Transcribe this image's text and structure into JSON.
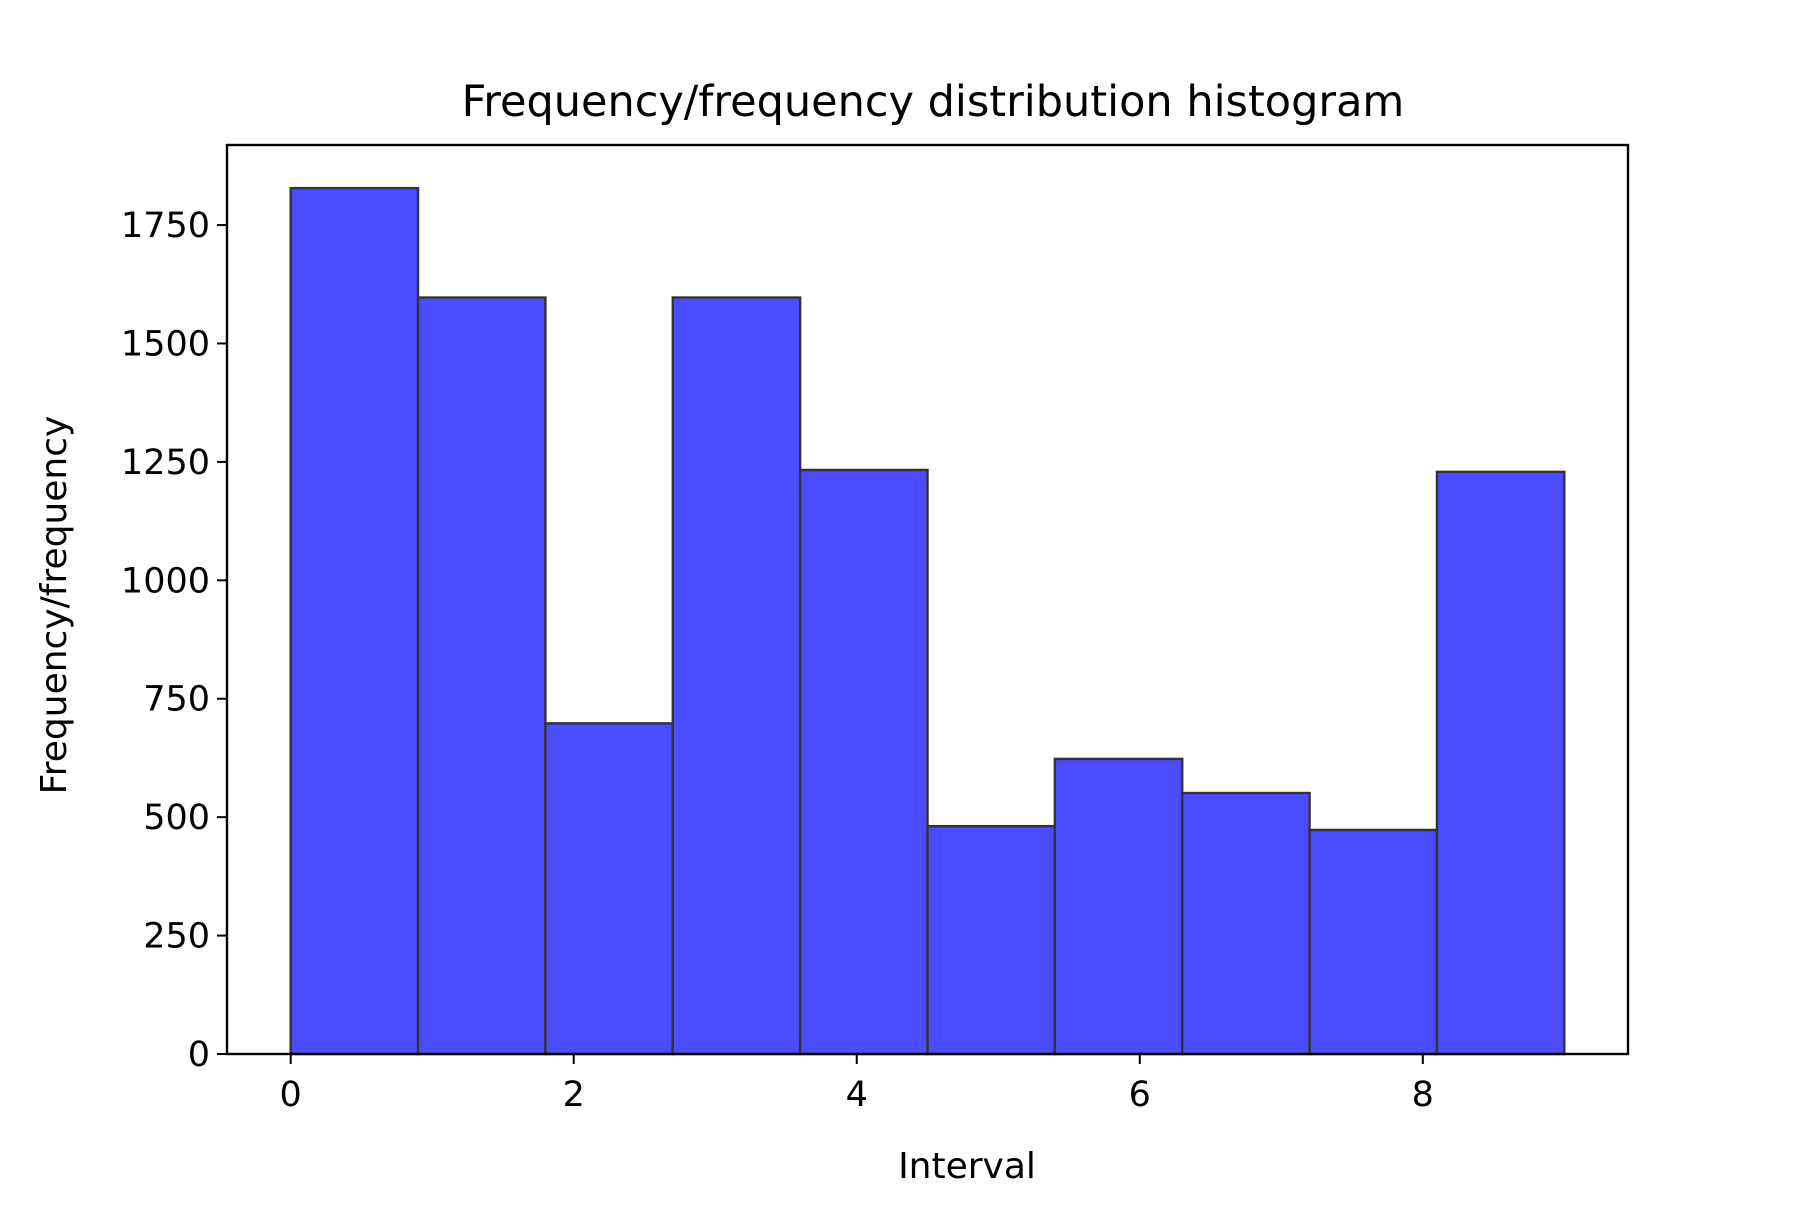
{
  "chart_data": {
    "type": "bar",
    "title": "Frequency/frequency distribution histogram",
    "xlabel": "Interval",
    "ylabel": "Frequency/frequency",
    "bins": [
      {
        "x0": 0.0,
        "x1": 0.9,
        "value": 1828
      },
      {
        "x0": 0.9,
        "x1": 1.8,
        "value": 1597
      },
      {
        "x0": 1.8,
        "x1": 2.7,
        "value": 698
      },
      {
        "x0": 2.7,
        "x1": 3.6,
        "value": 1597
      },
      {
        "x0": 3.6,
        "x1": 4.5,
        "value": 1233
      },
      {
        "x0": 4.5,
        "x1": 5.4,
        "value": 481
      },
      {
        "x0": 5.4,
        "x1": 6.3,
        "value": 623
      },
      {
        "x0": 6.3,
        "x1": 7.2,
        "value": 551
      },
      {
        "x0": 7.2,
        "x1": 8.1,
        "value": 473
      },
      {
        "x0": 8.1,
        "x1": 9.0,
        "value": 1229
      }
    ],
    "xlim": [
      -0.45,
      9.45
    ],
    "ylim": [
      0,
      1919
    ],
    "xticks": [
      0,
      2,
      4,
      6,
      8
    ],
    "yticks": [
      0,
      250,
      500,
      750,
      1000,
      1250,
      1500,
      1750
    ],
    "bar_color": "#4b4bff",
    "edge_color": "#333333",
    "grid": false
  }
}
